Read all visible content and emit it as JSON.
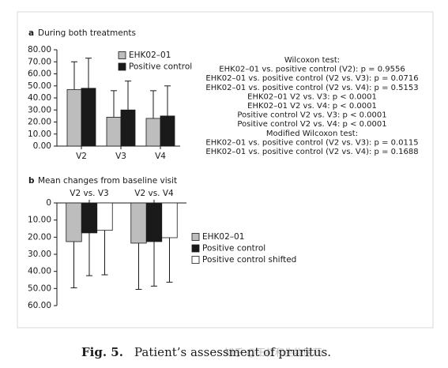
{
  "chart_data": [
    {
      "type": "bar",
      "panel": "a",
      "title": "During both treatments",
      "categories": [
        "V2",
        "V3",
        "V4"
      ],
      "series": [
        {
          "name": "EHK02–01",
          "color": "#bdbdbd",
          "values": [
            47,
            24,
            23
          ],
          "errors": [
            23,
            22,
            23
          ]
        },
        {
          "name": "Positive control",
          "color": "#1a1a1a",
          "values": [
            48,
            30,
            25
          ],
          "errors": [
            25,
            24,
            25
          ]
        }
      ],
      "ylim": [
        0,
        80
      ],
      "yticks": [
        {
          "value": 0,
          "label": "0.00"
        },
        {
          "value": 10,
          "label": "10.00"
        },
        {
          "value": 20,
          "label": "20.00"
        },
        {
          "value": 30,
          "label": "30.00"
        },
        {
          "value": 40,
          "label": "40.00"
        },
        {
          "value": 50,
          "label": "50.00"
        },
        {
          "value": 60,
          "label": "60.00"
        },
        {
          "value": 70,
          "label": "70.00"
        },
        {
          "value": 80,
          "label": "80.00"
        }
      ],
      "legend": "top",
      "annotations": [
        "Wilcoxon test:",
        "EHK02–01 vs. positive control (V2): p = 0.9556",
        "EHK02–01 vs. positive control (V2 vs. V3): p = 0.0716",
        "EHK02–01 vs. positive control (V2 vs. V4): p = 0.5153",
        "EHK02–01 V2 vs. V3: p < 0.0001",
        "EHK02–01 V2 vs. V4: p < 0.0001",
        "Positive control V2 vs. V3: p < 0.0001",
        "Positive control V2 vs. V4: p < 0.0001",
        "Modified Wilcoxon test:",
        "EHK02–01 vs. positive control (V2 vs. V3): p = 0.0115",
        "EHK02–01 vs. positive control (V2 vs. V4): p = 0.1688"
      ]
    },
    {
      "type": "bar",
      "panel": "b",
      "title": "Mean changes from baseline visit",
      "categories": [
        "V2 vs. V3",
        "V2 vs. V4"
      ],
      "series": [
        {
          "name": "EHK02–01",
          "color": "#bdbdbd",
          "values": [
            22.6,
            23.5
          ],
          "errors": [
            27,
            27
          ]
        },
        {
          "name": "Positive control",
          "color": "#1a1a1a",
          "values": [
            17.5,
            22.6
          ],
          "errors": [
            25,
            26
          ]
        },
        {
          "name": "Positive control shifted",
          "color": "#ffffff",
          "values": [
            16,
            20.3
          ],
          "errors": [
            26,
            26
          ]
        }
      ],
      "ylim": [
        0,
        60
      ],
      "y_inverted": true,
      "yticks": [
        0,
        {
          "value": 10,
          "label": "10.00"
        },
        {
          "value": 20,
          "label": "20.00"
        },
        {
          "value": 30,
          "label": "30.00"
        },
        {
          "value": 40,
          "label": "40.00"
        },
        {
          "value": 50,
          "label": "50.00"
        },
        {
          "value": 60,
          "label": "60.00"
        }
      ],
      "legend": "right"
    }
  ],
  "caption": {
    "label": "Fig. 5.",
    "text": "Patient’s assessment of pruritus."
  },
  "watermark": "知乎 @王叔和生物医药"
}
